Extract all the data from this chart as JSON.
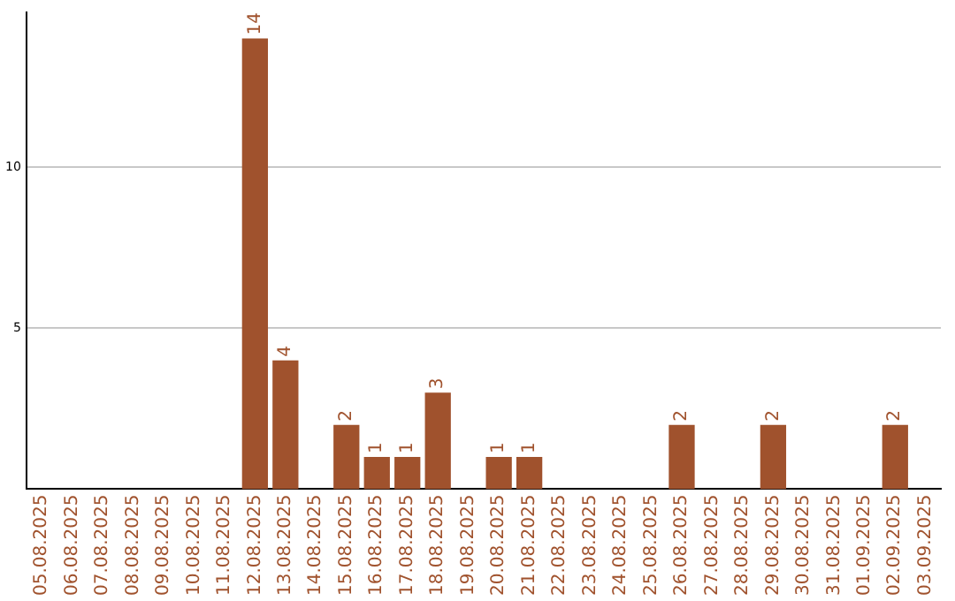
{
  "chart_data": {
    "type": "bar",
    "categories": [
      "05.08.2025",
      "06.08.2025",
      "07.08.2025",
      "08.08.2025",
      "09.08.2025",
      "10.08.2025",
      "11.08.2025",
      "12.08.2025",
      "13.08.2025",
      "14.08.2025",
      "15.08.2025",
      "16.08.2025",
      "17.08.2025",
      "18.08.2025",
      "19.08.2025",
      "20.08.2025",
      "21.08.2025",
      "22.08.2025",
      "23.08.2025",
      "24.08.2025",
      "25.08.2025",
      "26.08.2025",
      "27.08.2025",
      "28.08.2025",
      "29.08.2025",
      "30.08.2025",
      "31.08.2025",
      "01.09.2025",
      "02.09.2025",
      "03.09.2025"
    ],
    "values": [
      0,
      0,
      0,
      0,
      0,
      0,
      0,
      14,
      4,
      0,
      2,
      1,
      1,
      3,
      0,
      1,
      1,
      0,
      0,
      0,
      0,
      2,
      0,
      0,
      2,
      0,
      0,
      0,
      2,
      0
    ],
    "value_labels": [
      null,
      null,
      null,
      null,
      null,
      null,
      null,
      "14",
      "4",
      null,
      "2",
      "1",
      "1",
      "3",
      null,
      "1",
      "1",
      null,
      null,
      null,
      null,
      "2",
      null,
      null,
      "2",
      null,
      null,
      null,
      "2",
      null
    ],
    "color": "#a0522d",
    "ylim": [
      0,
      14.8
    ],
    "yticks": [
      5,
      10
    ],
    "grid": "y",
    "legend": false
  }
}
